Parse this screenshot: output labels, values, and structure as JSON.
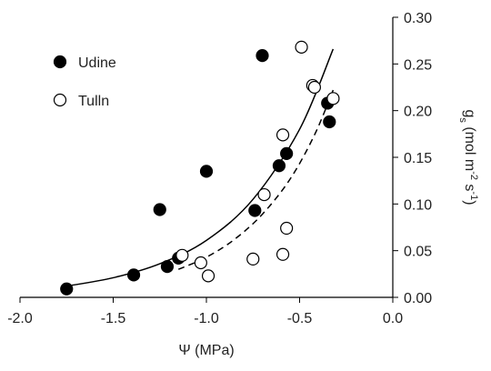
{
  "chart_data": {
    "type": "scatter",
    "x_label": "Ψ (MPa)",
    "y_label": [
      "g",
      "s",
      " (mol m",
      "-2",
      " s",
      "-1",
      ")"
    ],
    "xlim": [
      -2.0,
      0.0
    ],
    "xticks": [
      {
        "value": -2.0,
        "label": "-2.0"
      },
      {
        "value": -1.5,
        "label": "-1.5"
      },
      {
        "value": -1.0,
        "label": "-1.0"
      },
      {
        "value": -0.5,
        "label": "-0.5"
      },
      {
        "value": 0.0,
        "label": "0.0"
      }
    ],
    "ylim": [
      0.0,
      0.3
    ],
    "yticks": [
      {
        "value": 0.0,
        "label": "0.00"
      },
      {
        "value": 0.05,
        "label": "0.05"
      },
      {
        "value": 0.1,
        "label": "0.10"
      },
      {
        "value": 0.15,
        "label": "0.15"
      },
      {
        "value": 0.2,
        "label": "0.20"
      },
      {
        "value": 0.25,
        "label": "0.25"
      },
      {
        "value": 0.3,
        "label": "0.30"
      }
    ],
    "legend": "upper left",
    "series": [
      {
        "name": "Udine",
        "color": "#000000",
        "filled": true,
        "x": [
          -1.75,
          -1.39,
          -1.25,
          -1.21,
          -1.15,
          -1.0,
          -0.7,
          -0.74,
          -0.61,
          -0.57,
          -0.35,
          -0.34
        ],
        "values": [
          0.009,
          0.024,
          0.094,
          0.033,
          0.042,
          0.135,
          0.259,
          0.093,
          0.141,
          0.154,
          0.208,
          0.188
        ]
      },
      {
        "name": "Tulln",
        "color": "#000000",
        "filled": false,
        "x": [
          -0.49,
          -0.43,
          -0.42,
          -0.32,
          -0.59,
          -0.69,
          -0.57,
          -0.59,
          -0.75,
          -0.99,
          -1.03,
          -1.13
        ],
        "values": [
          0.268,
          0.227,
          0.225,
          0.213,
          0.174,
          0.11,
          0.074,
          0.046,
          0.041,
          0.023,
          0.037,
          0.045
        ]
      }
    ],
    "fits": [
      {
        "dashed": false,
        "x": [
          -1.75,
          -1.5,
          -1.25,
          -1.0,
          -0.75,
          -0.5,
          -0.32
        ],
        "values": [
          0.012,
          0.021,
          0.036,
          0.061,
          0.105,
          0.18,
          0.266
        ]
      },
      {
        "dashed": true,
        "x": [
          -1.15,
          -1.0,
          -0.85,
          -0.7,
          -0.55,
          -0.42,
          -0.32
        ],
        "values": [
          0.03,
          0.043,
          0.062,
          0.089,
          0.127,
          0.174,
          0.222
        ]
      }
    ]
  }
}
